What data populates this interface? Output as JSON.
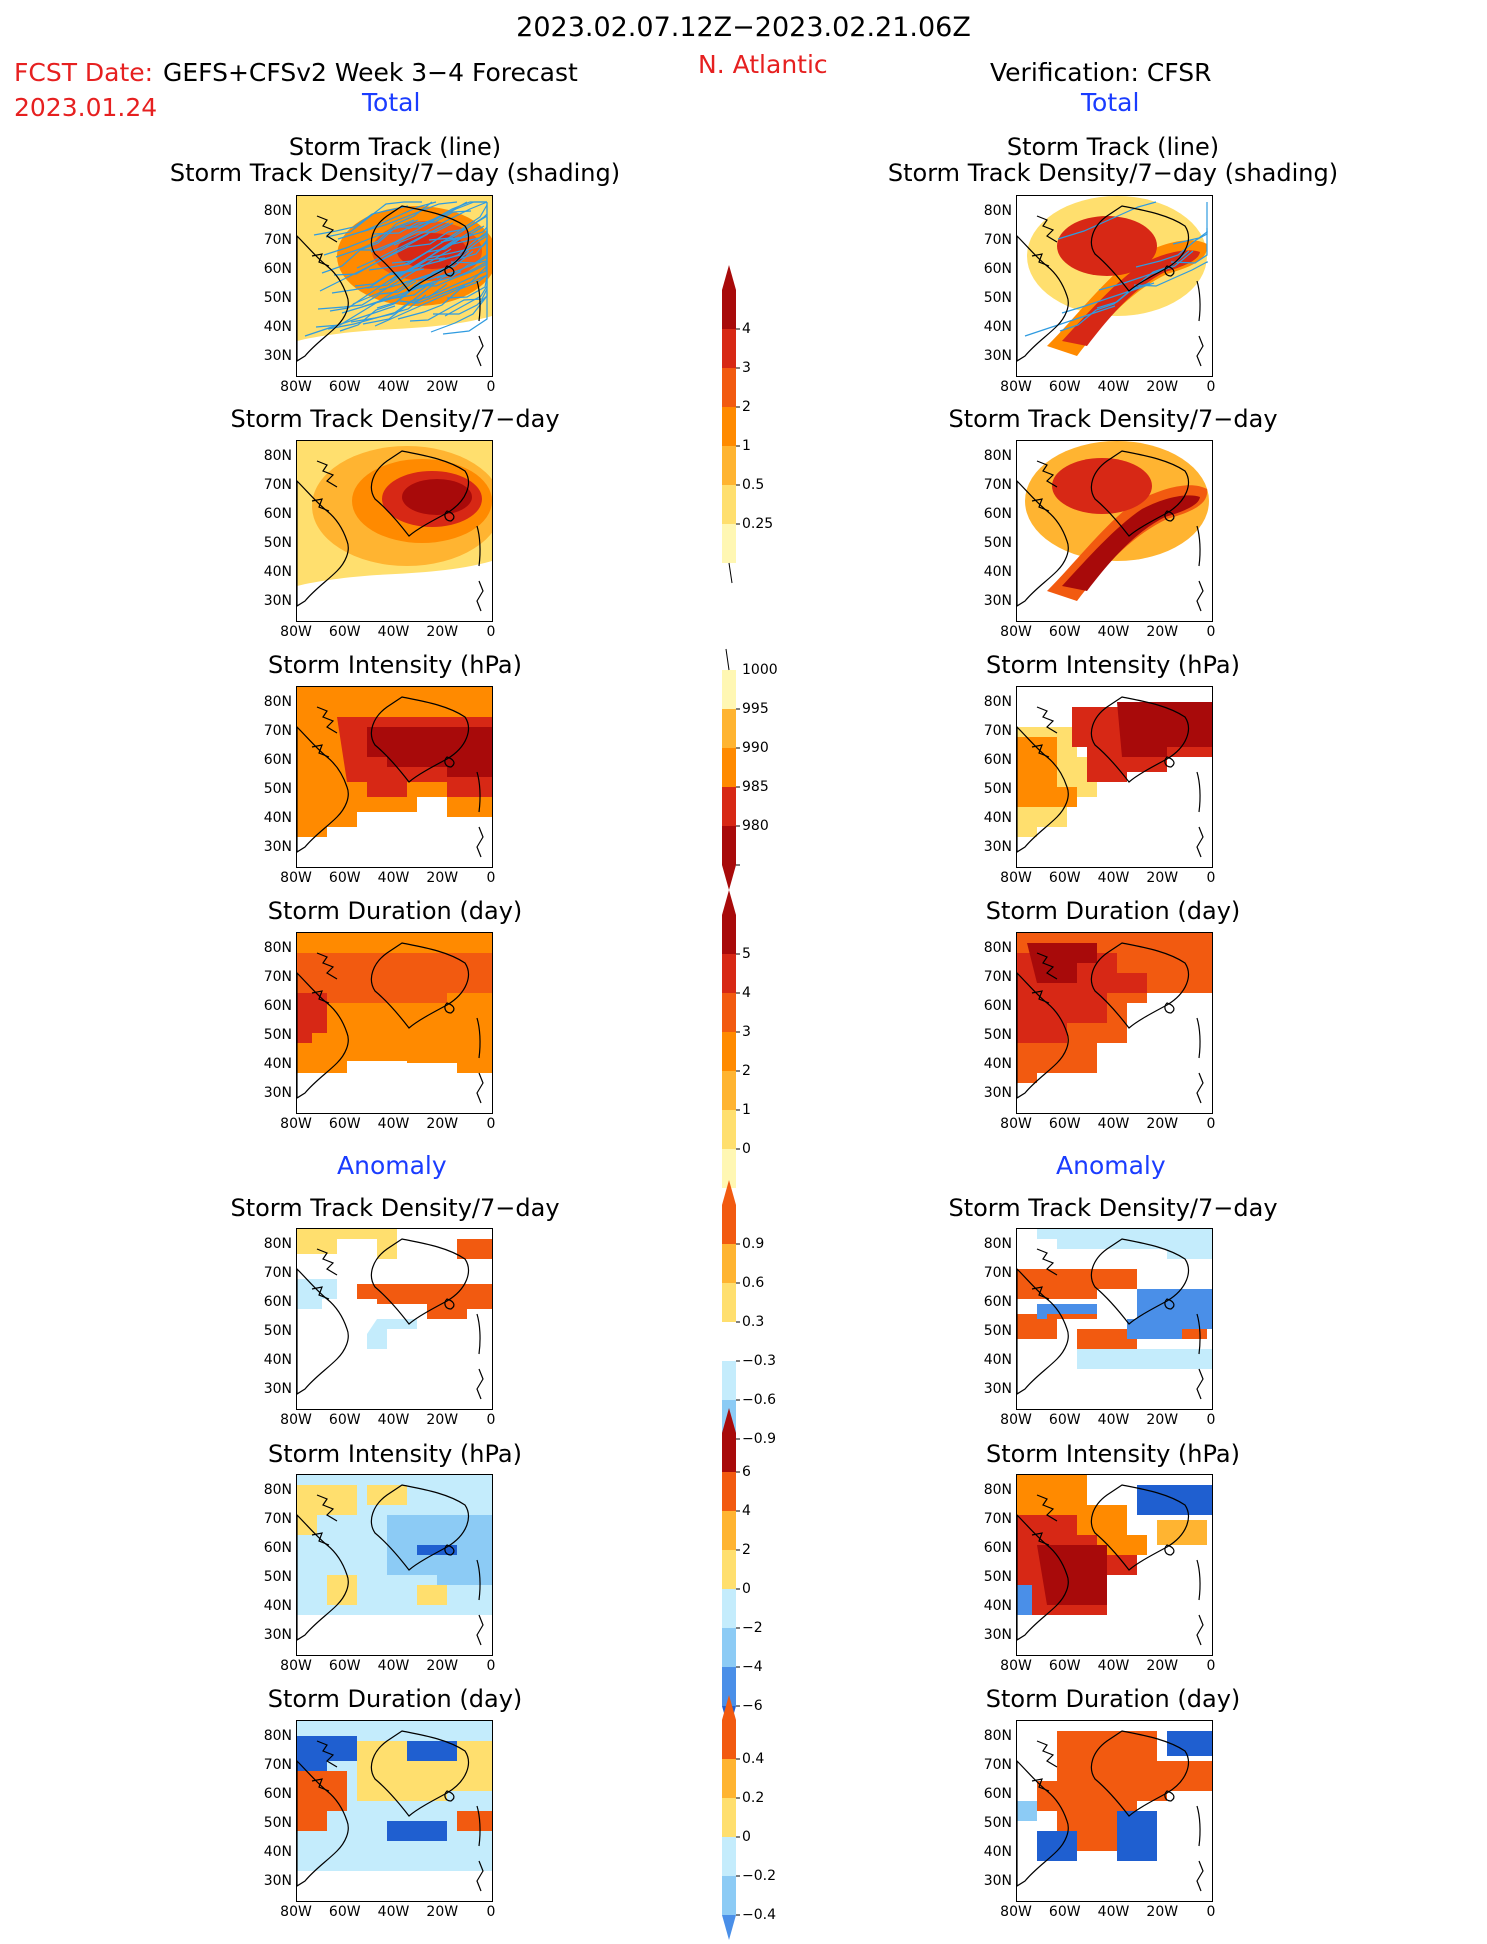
{
  "header": {
    "date_range": "2023.02.07.12Z−2023.02.21.06Z",
    "fcst_label": "FCST Date:",
    "fcst_date": "2023.01.24",
    "model": "GEFS+CFSv2 Week 3−4 Forecast",
    "region": "N. Atlantic",
    "verification": "Verification: CFSR"
  },
  "sections": {
    "total_left": "Total",
    "total_right": "Total",
    "anomaly_left": "Anomaly",
    "anomaly_right": "Anomaly"
  },
  "titles": {
    "track_line": "Storm Track (line)",
    "track_density_shading": "Storm Track Density/7−day (shading)",
    "track_density": "Storm Track Density/7−day",
    "intensity": "Storm Intensity (hPa)",
    "duration": "Storm Duration (day)"
  },
  "axes": {
    "lat_labels": [
      "80N",
      "70N",
      "60N",
      "50N",
      "40N",
      "30N"
    ],
    "lon_labels": [
      "80W",
      "60W",
      "40W",
      "20W",
      "0"
    ]
  },
  "colorbars": {
    "density_total": [
      "4",
      "3",
      "2",
      "1",
      "0.5",
      "0.25"
    ],
    "intensity_total": [
      "1000",
      "995",
      "990",
      "985",
      "980"
    ],
    "duration_total": [
      "5",
      "4",
      "3",
      "2",
      "1",
      "0"
    ],
    "density_anom": [
      "0.9",
      "0.6",
      "0.3",
      "−0.3",
      "−0.6",
      "−0.9"
    ],
    "intensity_anom": [
      "6",
      "4",
      "2",
      "0",
      "−2",
      "−4",
      "−6"
    ],
    "duration_anom": [
      "0.4",
      "0.2",
      "0",
      "−0.2",
      "−0.4"
    ]
  },
  "colors": {
    "warm": [
      "#fff7b3",
      "#ffdf6e",
      "#ffb431",
      "#ff8a00",
      "#f25a10",
      "#d72815",
      "#a80a0a"
    ],
    "cool": [
      "#c4ecfc",
      "#8ccbf5",
      "#4a8fe8",
      "#1f5fd0"
    ],
    "track_line": "#2f9be0",
    "title_red": "#e62020",
    "section_blue": "#1a3cff"
  }
}
